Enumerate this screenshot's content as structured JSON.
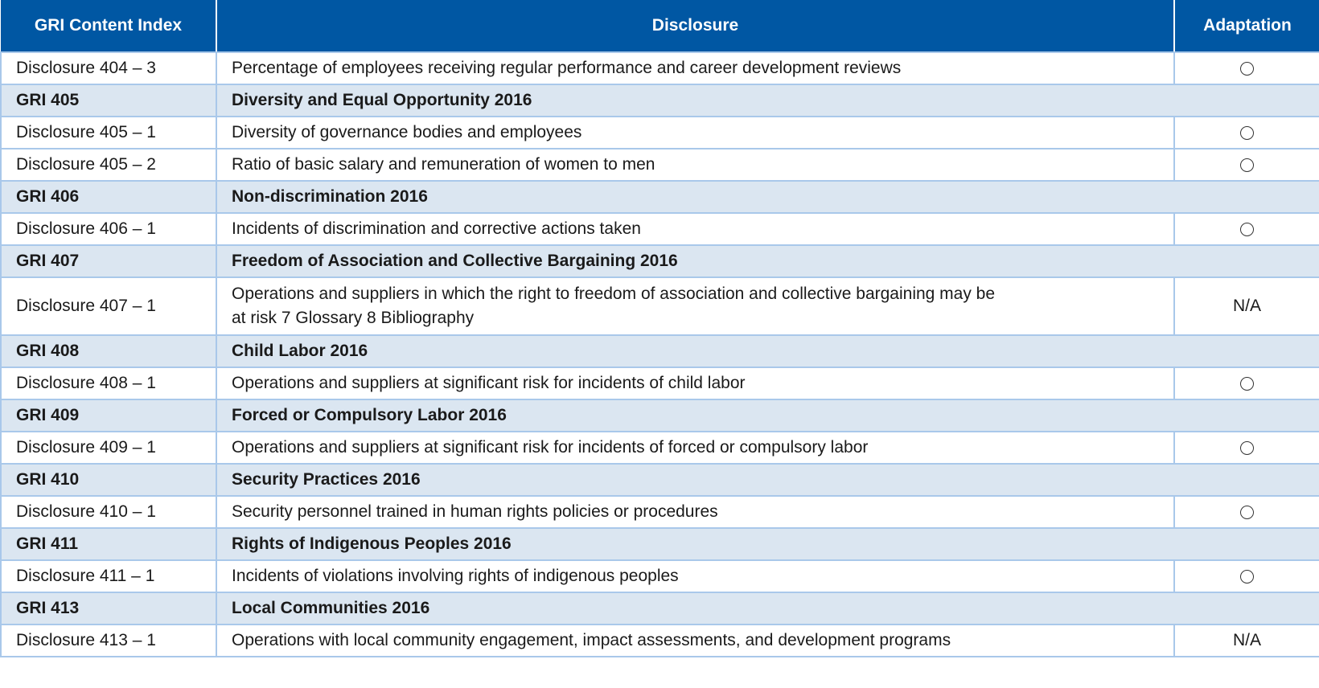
{
  "header": {
    "col1": "GRI Content Index",
    "col2": "Disclosure",
    "col3": "Adaptation"
  },
  "symbols": {
    "applied": "○"
  },
  "rows": [
    {
      "type": "item",
      "index": "Disclosure 404 – 3",
      "disclosure": "Percentage of employees receiving regular performance and career development reviews",
      "adaptation": "circle"
    },
    {
      "type": "group",
      "index": "GRI 405",
      "disclosure": "Diversity and Equal Opportunity 2016"
    },
    {
      "type": "item",
      "index": "Disclosure 405 – 1",
      "disclosure": "Diversity of governance bodies and employees",
      "adaptation": "circle"
    },
    {
      "type": "item",
      "index": "Disclosure 405 – 2",
      "disclosure": "Ratio of basic salary and remuneration of women to men",
      "adaptation": "circle"
    },
    {
      "type": "group",
      "index": "GRI 406",
      "disclosure": "Non-discrimination 2016"
    },
    {
      "type": "item",
      "index": "Disclosure 406 – 1",
      "disclosure": "Incidents of discrimination and corrective actions taken",
      "adaptation": "circle"
    },
    {
      "type": "group",
      "index": "GRI 407",
      "disclosure": "Freedom of Association and Collective Bargaining 2016"
    },
    {
      "type": "item",
      "index": "Disclosure 407 – 1",
      "disclosure_line1": "Operations and suppliers in which the right to freedom of association and collective bargaining may be",
      "disclosure_line2": "at risk 7 Glossary 8 Bibliography",
      "adaptation": "N/A"
    },
    {
      "type": "group",
      "index": "GRI 408",
      "disclosure": "Child Labor 2016"
    },
    {
      "type": "item",
      "index": "Disclosure 408 – 1",
      "disclosure": "Operations and suppliers at significant risk for incidents of child labor",
      "adaptation": "circle"
    },
    {
      "type": "group",
      "index": "GRI 409",
      "disclosure": "Forced or Compulsory Labor 2016"
    },
    {
      "type": "item",
      "index": "Disclosure 409 – 1",
      "disclosure": "Operations and suppliers at significant risk for incidents of forced or compulsory labor",
      "adaptation": "circle"
    },
    {
      "type": "group",
      "index": "GRI 410",
      "disclosure": "Security Practices 2016"
    },
    {
      "type": "item",
      "index": "Disclosure 410 – 1",
      "disclosure": "Security personnel trained in human rights policies or procedures",
      "adaptation": "circle"
    },
    {
      "type": "group",
      "index": "GRI 411",
      "disclosure": "Rights of Indigenous Peoples 2016"
    },
    {
      "type": "item",
      "index": "Disclosure 411 – 1",
      "disclosure": "Incidents of violations involving rights of indigenous peoples",
      "adaptation": "circle"
    },
    {
      "type": "group",
      "index": "GRI 413",
      "disclosure": "Local Communities 2016"
    },
    {
      "type": "item",
      "index": "Disclosure 413 – 1",
      "disclosure": "Operations with local community engagement, impact assessments, and development programs",
      "adaptation": "N/A"
    }
  ]
}
